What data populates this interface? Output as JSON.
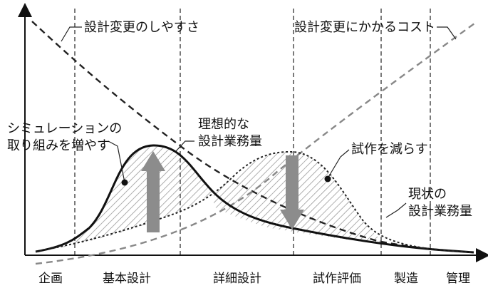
{
  "phases": [
    "企画",
    "基本設計",
    "詳細設計",
    "試作評価",
    "製造",
    "管理"
  ],
  "labels": {
    "ease_of_change": "設計変更のしやすさ",
    "cost_of_change": "設計変更にかかるコスト",
    "simulation_line1": "シミュレーションの",
    "simulation_line2": "取り組みを増やす",
    "ideal_line1": "理想的な",
    "ideal_line2": "設計業務量",
    "reduce_prototype": "試作を減らす",
    "current_line1": "現状の",
    "current_line2": "設計業務量"
  },
  "colors": {
    "axis": "#111111",
    "solid_curve": "#111111",
    "dashed_dark": "#222222",
    "dashed_gray": "#888888",
    "arrow": "#8c8c8c",
    "hatch": "#9a9a9a"
  }
}
